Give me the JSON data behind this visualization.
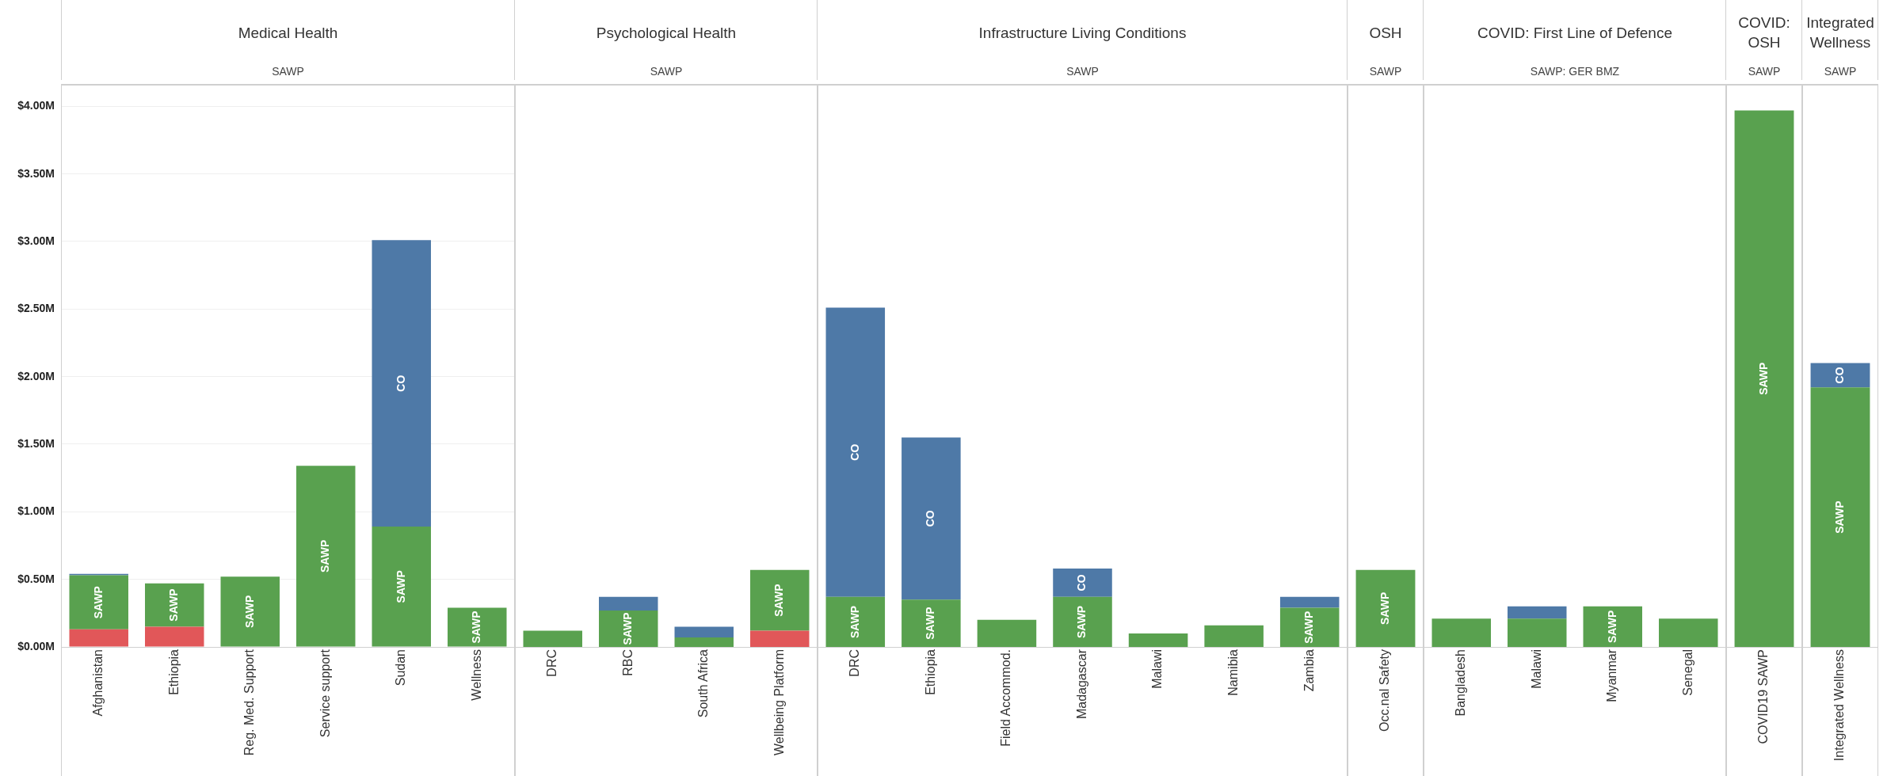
{
  "chart_data": [
    {
      "type": "bar",
      "title": "Medical Health",
      "subtitle": "SAWP",
      "stacked": true,
      "grid": "y",
      "categories": [
        "Afghanistan",
        "Ethiopia",
        "Reg. Med. Support",
        "Service support",
        "Sudan",
        "Wellness"
      ],
      "ylim": [
        0,
        4.16
      ],
      "yticks": [
        {
          "value": 0,
          "label": "$0.00M"
        },
        {
          "value": 0.5,
          "label": "$0.50M"
        },
        {
          "value": 1,
          "label": "$1.00M"
        },
        {
          "value": 1.5,
          "label": "$1.50M"
        },
        {
          "value": 2,
          "label": "$2.00M"
        },
        {
          "value": 2.5,
          "label": "$2.50M"
        },
        {
          "value": 3,
          "label": "$3.00M"
        },
        {
          "value": 3.5,
          "label": "$3.50M"
        },
        {
          "value": 4,
          "label": "$4.00M"
        }
      ],
      "series": [
        {
          "color": "#e15759",
          "values": [
            0.13,
            0.15,
            0,
            0,
            0,
            0
          ]
        },
        {
          "name": "SAWP",
          "color": "#59a14f",
          "values": [
            0.4,
            0.32,
            0.52,
            1.34,
            0.89,
            0.29
          ]
        },
        {
          "name": "CO",
          "color": "#4e79a7",
          "values": [
            0.01,
            0,
            0,
            0,
            2.12,
            0
          ]
        }
      ]
    },
    {
      "type": "bar",
      "title": "Psychological Health",
      "subtitle": "SAWP",
      "stacked": true,
      "grid": "y",
      "tick_labels": "x",
      "categories": [
        "DRC",
        "RBC",
        "South Africa",
        "Wellbeing Platform"
      ],
      "ylim": [
        0,
        4.16
      ],
      "series": [
        {
          "color": "#e15759",
          "values": [
            0,
            0,
            0,
            0.12
          ]
        },
        {
          "name": "SAWP",
          "color": "#59a14f",
          "values": [
            0.12,
            0.27,
            0.07,
            0.45
          ]
        },
        {
          "color": "#4e79a7",
          "values": [
            0,
            0.1,
            0.08,
            0
          ]
        }
      ]
    },
    {
      "type": "bar",
      "title": "Infrastructure Living Conditions",
      "subtitle": "SAWP",
      "stacked": true,
      "grid": "y",
      "tick_labels": "x",
      "categories": [
        "DRC",
        "Ethiopia",
        "Field Accommod.",
        "Madagascar",
        "Malawi",
        "Namibia",
        "Zambia"
      ],
      "ylim": [
        0,
        4.16
      ],
      "series": [
        {
          "name": "SAWP",
          "color": "#59a14f",
          "values": [
            0.37,
            0.35,
            0.2,
            0.37,
            0.1,
            0.16,
            0.29
          ]
        },
        {
          "name": "CO",
          "color": "#4e79a7",
          "values": [
            2.14,
            1.2,
            0,
            0.21,
            0,
            0,
            0.08
          ]
        }
      ]
    },
    {
      "type": "bar",
      "title": "OSH",
      "subtitle": "SAWP",
      "stacked": true,
      "grid": "y",
      "tick_labels": "x",
      "categories": [
        "Occ.nal Safety"
      ],
      "ylim": [
        0,
        4.16
      ],
      "series": [
        {
          "name": "SAWP",
          "color": "#59a14f",
          "values": [
            0.57
          ]
        }
      ]
    },
    {
      "type": "bar",
      "title": "COVID: First Line of Defence",
      "subtitle": "SAWP: GER BMZ",
      "stacked": true,
      "grid": "y",
      "tick_labels": "x",
      "categories": [
        "Bangladesh",
        "Malawi",
        "Myanmar",
        "Senegal"
      ],
      "ylim": [
        0,
        4.16
      ],
      "series": [
        {
          "name": "SAWP",
          "color": "#59a14f",
          "values": [
            0.21,
            0.21,
            0.3,
            0.21
          ]
        },
        {
          "color": "#4e79a7",
          "values": [
            0,
            0.09,
            0,
            0
          ]
        }
      ]
    },
    {
      "type": "bar",
      "title": "COVID: OSH",
      "subtitle": "SAWP",
      "stacked": true,
      "grid": "y",
      "tick_labels": "x",
      "categories": [
        "COVID19 SAWP"
      ],
      "ylim": [
        0,
        4.16
      ],
      "series": [
        {
          "name": "SAWP",
          "color": "#59a14f",
          "values": [
            3.97
          ]
        }
      ]
    },
    {
      "type": "bar",
      "title": "Integrated Wellness",
      "subtitle": "SAWP",
      "stacked": true,
      "grid": "y",
      "tick_labels": "x",
      "categories": [
        "Integrated Wellness"
      ],
      "ylim": [
        0,
        4.16
      ],
      "series": [
        {
          "name": "SAWP",
          "color": "#59a14f",
          "values": [
            1.92
          ]
        },
        {
          "name": "CO",
          "color": "#4e79a7",
          "values": [
            0.18
          ]
        }
      ]
    }
  ]
}
